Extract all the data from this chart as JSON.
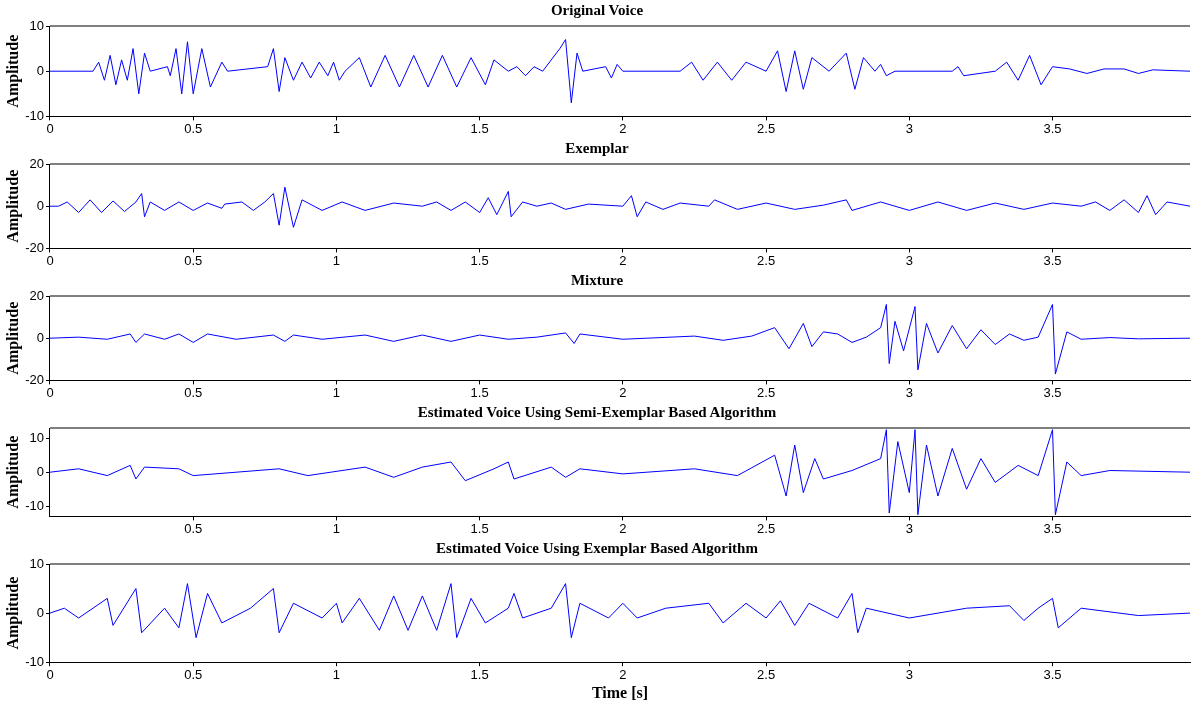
{
  "chart_data": [
    {
      "type": "line",
      "title": "Original Voice",
      "ylabel": "Amplitude",
      "xlim": [
        0,
        3.98
      ],
      "xticks": [
        0,
        0.5,
        1,
        1.5,
        2,
        2.5,
        3,
        3.5
      ],
      "ylim": [
        -10,
        10
      ],
      "yticks": [
        -10,
        0,
        10
      ],
      "grid": false,
      "legend": false,
      "marker": "none",
      "series": [
        {
          "color": "#0000ff",
          "x": [
            0,
            0.15,
            0.17,
            0.19,
            0.21,
            0.23,
            0.25,
            0.27,
            0.29,
            0.31,
            0.33,
            0.35,
            0.41,
            0.42,
            0.44,
            0.46,
            0.48,
            0.5,
            0.53,
            0.56,
            0.6,
            0.62,
            0.76,
            0.78,
            0.8,
            0.82,
            0.85,
            0.88,
            0.91,
            0.94,
            0.97,
            0.99,
            1.01,
            1.03,
            1.08,
            1.12,
            1.17,
            1.22,
            1.27,
            1.32,
            1.37,
            1.42,
            1.47,
            1.52,
            1.55,
            1.6,
            1.63,
            1.66,
            1.69,
            1.72,
            1.78,
            1.8,
            1.82,
            1.84,
            1.86,
            1.94,
            1.96,
            1.98,
            2.0,
            2.2,
            2.24,
            2.28,
            2.33,
            2.38,
            2.43,
            2.5,
            2.54,
            2.57,
            2.6,
            2.63,
            2.66,
            2.72,
            2.75,
            2.78,
            2.81,
            2.84,
            2.88,
            2.9,
            2.92,
            2.95,
            3.15,
            3.17,
            3.19,
            3.3,
            3.34,
            3.38,
            3.42,
            3.46,
            3.5,
            3.56,
            3.62,
            3.68,
            3.75,
            3.8,
            3.85,
            3.98
          ],
          "values": [
            0,
            0,
            2,
            -2,
            3.5,
            -3,
            2.5,
            -2,
            5,
            -5,
            4,
            0,
            1,
            -1,
            5,
            -5,
            6.5,
            -5,
            5,
            -3.5,
            2,
            0,
            1,
            5,
            -4.5,
            3,
            -2,
            2,
            -1.5,
            2,
            -1,
            2,
            -2,
            0,
            3,
            -3.5,
            3.5,
            -3.5,
            3.5,
            -3.5,
            3.5,
            -3.5,
            3,
            -3,
            2.5,
            0,
            1,
            -1,
            1,
            0,
            5,
            7,
            -7,
            4,
            0,
            1,
            -1.5,
            1.5,
            0,
            0,
            2,
            -2,
            2,
            -2,
            2,
            0,
            4.5,
            -4.5,
            4.5,
            -4,
            3,
            0,
            2,
            4,
            -4,
            3,
            0,
            1.5,
            -1,
            0,
            0,
            1,
            -1,
            0,
            2,
            -2,
            3.5,
            -3,
            1,
            0.5,
            -0.5,
            0.5,
            0.5,
            -0.5,
            0.3,
            0
          ]
        }
      ]
    },
    {
      "type": "line",
      "title": "Exemplar",
      "ylabel": "Amplitude",
      "xlim": [
        0,
        3.98
      ],
      "xticks": [
        0,
        0.5,
        1,
        1.5,
        2,
        2.5,
        3,
        3.5
      ],
      "ylim": [
        -20,
        20
      ],
      "yticks": [
        -20,
        0,
        20
      ],
      "grid": false,
      "legend": false,
      "marker": "none",
      "series": [
        {
          "color": "#0000ff",
          "x": [
            0,
            0.03,
            0.06,
            0.1,
            0.14,
            0.18,
            0.22,
            0.26,
            0.3,
            0.32,
            0.33,
            0.35,
            0.4,
            0.45,
            0.5,
            0.55,
            0.6,
            0.61,
            0.67,
            0.71,
            0.75,
            0.78,
            0.8,
            0.82,
            0.85,
            0.88,
            0.95,
            1.02,
            1.1,
            1.2,
            1.3,
            1.35,
            1.4,
            1.45,
            1.5,
            1.53,
            1.56,
            1.6,
            1.61,
            1.65,
            1.7,
            1.75,
            1.8,
            1.88,
            2.0,
            2.03,
            2.05,
            2.08,
            2.14,
            2.2,
            2.3,
            2.32,
            2.4,
            2.5,
            2.6,
            2.7,
            2.78,
            2.8,
            2.9,
            3.0,
            3.1,
            3.2,
            3.3,
            3.4,
            3.5,
            3.6,
            3.65,
            3.7,
            3.75,
            3.8,
            3.83,
            3.86,
            3.9,
            3.98
          ],
          "values": [
            0,
            0,
            2,
            -3,
            3,
            -3,
            2.5,
            -2.5,
            2,
            6,
            -5,
            2,
            -2,
            2,
            -2,
            1.5,
            -1,
            1,
            2,
            -2,
            2,
            6,
            -9,
            9,
            -10,
            3,
            -2,
            2,
            -2,
            1.5,
            0,
            2,
            -2,
            2,
            -3,
            4,
            -4,
            7,
            -5,
            2,
            0,
            1.5,
            -1.5,
            1,
            0,
            5,
            -5,
            2,
            -1.5,
            1.5,
            0,
            3,
            -1.5,
            1.5,
            -1.5,
            0.5,
            3,
            -2,
            2,
            -2,
            2,
            -2,
            1.5,
            -1.5,
            1.5,
            0,
            2,
            -2,
            3,
            -3,
            5,
            -4,
            2,
            0
          ]
        }
      ]
    },
    {
      "type": "line",
      "title": "Mixture",
      "ylabel": "Amplitude",
      "xlim": [
        0,
        3.98
      ],
      "xticks": [
        0,
        0.5,
        1,
        1.5,
        2,
        2.5,
        3,
        3.5
      ],
      "ylim": [
        -20,
        20
      ],
      "yticks": [
        -20,
        0,
        20
      ],
      "grid": false,
      "legend": false,
      "marker": "none",
      "series": [
        {
          "color": "#0000ff",
          "x": [
            0,
            0.1,
            0.2,
            0.28,
            0.3,
            0.33,
            0.4,
            0.45,
            0.5,
            0.55,
            0.65,
            0.78,
            0.82,
            0.85,
            0.95,
            1.1,
            1.2,
            1.3,
            1.4,
            1.5,
            1.6,
            1.7,
            1.8,
            1.83,
            1.85,
            2.0,
            2.25,
            2.35,
            2.45,
            2.53,
            2.58,
            2.63,
            2.66,
            2.7,
            2.75,
            2.8,
            2.85,
            2.9,
            2.92,
            2.93,
            2.95,
            2.98,
            3.02,
            3.03,
            3.06,
            3.1,
            3.15,
            3.2,
            3.25,
            3.3,
            3.35,
            3.4,
            3.45,
            3.5,
            3.51,
            3.55,
            3.6,
            3.7,
            3.8,
            3.98
          ],
          "values": [
            0,
            0.5,
            -0.5,
            2,
            -2,
            2,
            -0.5,
            2,
            -2,
            2,
            -0.5,
            1.5,
            -1.5,
            1.5,
            -0.5,
            1.5,
            -1.5,
            1.5,
            -1.5,
            1.5,
            -0.5,
            0.5,
            2.5,
            -2.5,
            2,
            -0.5,
            1,
            -1,
            1,
            5,
            -5,
            7,
            -4,
            3,
            2,
            -2,
            0.5,
            5,
            16,
            -12,
            8,
            -6,
            15,
            -15,
            7,
            -7,
            6,
            -5,
            4,
            -3,
            2,
            -1,
            0.5,
            16,
            -17,
            3,
            -0.5,
            0.3,
            -0.3,
            0
          ]
        }
      ]
    },
    {
      "type": "line",
      "title": "Estimated Voice Using Semi-Exemplar Based Algorithm",
      "ylabel": "Amplitude",
      "xlim": [
        0,
        3.98
      ],
      "xticks": [
        0.5,
        1,
        1.5,
        2,
        2.5,
        3,
        3.5
      ],
      "ylim": [
        -13,
        13
      ],
      "yticks": [
        -10,
        0,
        10
      ],
      "grid": false,
      "legend": false,
      "marker": "none",
      "series": [
        {
          "color": "#0000ff",
          "x": [
            0,
            0.1,
            0.2,
            0.28,
            0.3,
            0.33,
            0.45,
            0.5,
            0.8,
            0.9,
            1.1,
            1.2,
            1.3,
            1.4,
            1.45,
            1.55,
            1.6,
            1.62,
            1.75,
            1.8,
            1.85,
            2.0,
            2.25,
            2.4,
            2.53,
            2.57,
            2.6,
            2.63,
            2.67,
            2.7,
            2.8,
            2.9,
            2.92,
            2.93,
            2.96,
            3.0,
            3.02,
            3.03,
            3.06,
            3.1,
            3.15,
            3.2,
            3.25,
            3.3,
            3.38,
            3.45,
            3.5,
            3.51,
            3.55,
            3.6,
            3.7,
            3.98
          ],
          "values": [
            0,
            1,
            -1,
            2,
            -2,
            1.5,
            1,
            -1,
            1,
            -1,
            1.5,
            -1.5,
            1.5,
            3,
            -2.5,
            1,
            3,
            -2,
            1.5,
            -1.5,
            1,
            -0.5,
            1,
            -1,
            5,
            -7,
            8,
            -6,
            4,
            -2,
            0.5,
            4,
            12.5,
            -12,
            9,
            -6,
            12.5,
            -12.5,
            8,
            -7,
            7,
            -5,
            4,
            -3,
            2,
            -1,
            12.5,
            -12.5,
            3,
            -1,
            0.5,
            0
          ]
        }
      ]
    },
    {
      "type": "line",
      "title": "Estimated Voice Using Exemplar Based Algorithm",
      "xlabel": "Time [s]",
      "ylabel": "Amplitude",
      "xlim": [
        0,
        3.98
      ],
      "xticks": [
        0,
        0.5,
        1,
        1.5,
        2,
        2.5,
        3,
        3.5
      ],
      "ylim": [
        -10,
        10
      ],
      "yticks": [
        -10,
        0,
        10
      ],
      "grid": false,
      "legend": false,
      "marker": "none",
      "series": [
        {
          "color": "#0000ff",
          "x": [
            0,
            0.05,
            0.1,
            0.15,
            0.2,
            0.22,
            0.3,
            0.32,
            0.4,
            0.45,
            0.48,
            0.51,
            0.55,
            0.6,
            0.7,
            0.78,
            0.8,
            0.85,
            0.95,
            1.0,
            1.02,
            1.08,
            1.15,
            1.2,
            1.25,
            1.3,
            1.35,
            1.4,
            1.42,
            1.47,
            1.52,
            1.6,
            1.62,
            1.65,
            1.75,
            1.8,
            1.82,
            1.85,
            1.95,
            2.0,
            2.05,
            2.15,
            2.3,
            2.35,
            2.43,
            2.5,
            2.55,
            2.6,
            2.65,
            2.75,
            2.8,
            2.82,
            2.85,
            3.0,
            3.2,
            3.35,
            3.4,
            3.45,
            3.5,
            3.52,
            3.6,
            3.8,
            3.98
          ],
          "values": [
            0,
            1,
            -1,
            1,
            3,
            -2.5,
            5,
            -4,
            1,
            -3,
            6,
            -5,
            4,
            -2,
            1,
            5,
            -4,
            2,
            -1,
            2,
            -2,
            3,
            -3.5,
            3.5,
            -3.5,
            3.5,
            -3.5,
            6,
            -5,
            3,
            -2,
            1,
            4,
            -1,
            1,
            6,
            -5,
            2,
            -1,
            2,
            -1,
            1,
            2,
            -2,
            2,
            -1,
            2.5,
            -2.5,
            2,
            -1,
            4,
            -4,
            1,
            -1,
            1,
            1.5,
            -1.5,
            1,
            3,
            -3,
            1,
            -0.5,
            0
          ]
        }
      ]
    }
  ]
}
